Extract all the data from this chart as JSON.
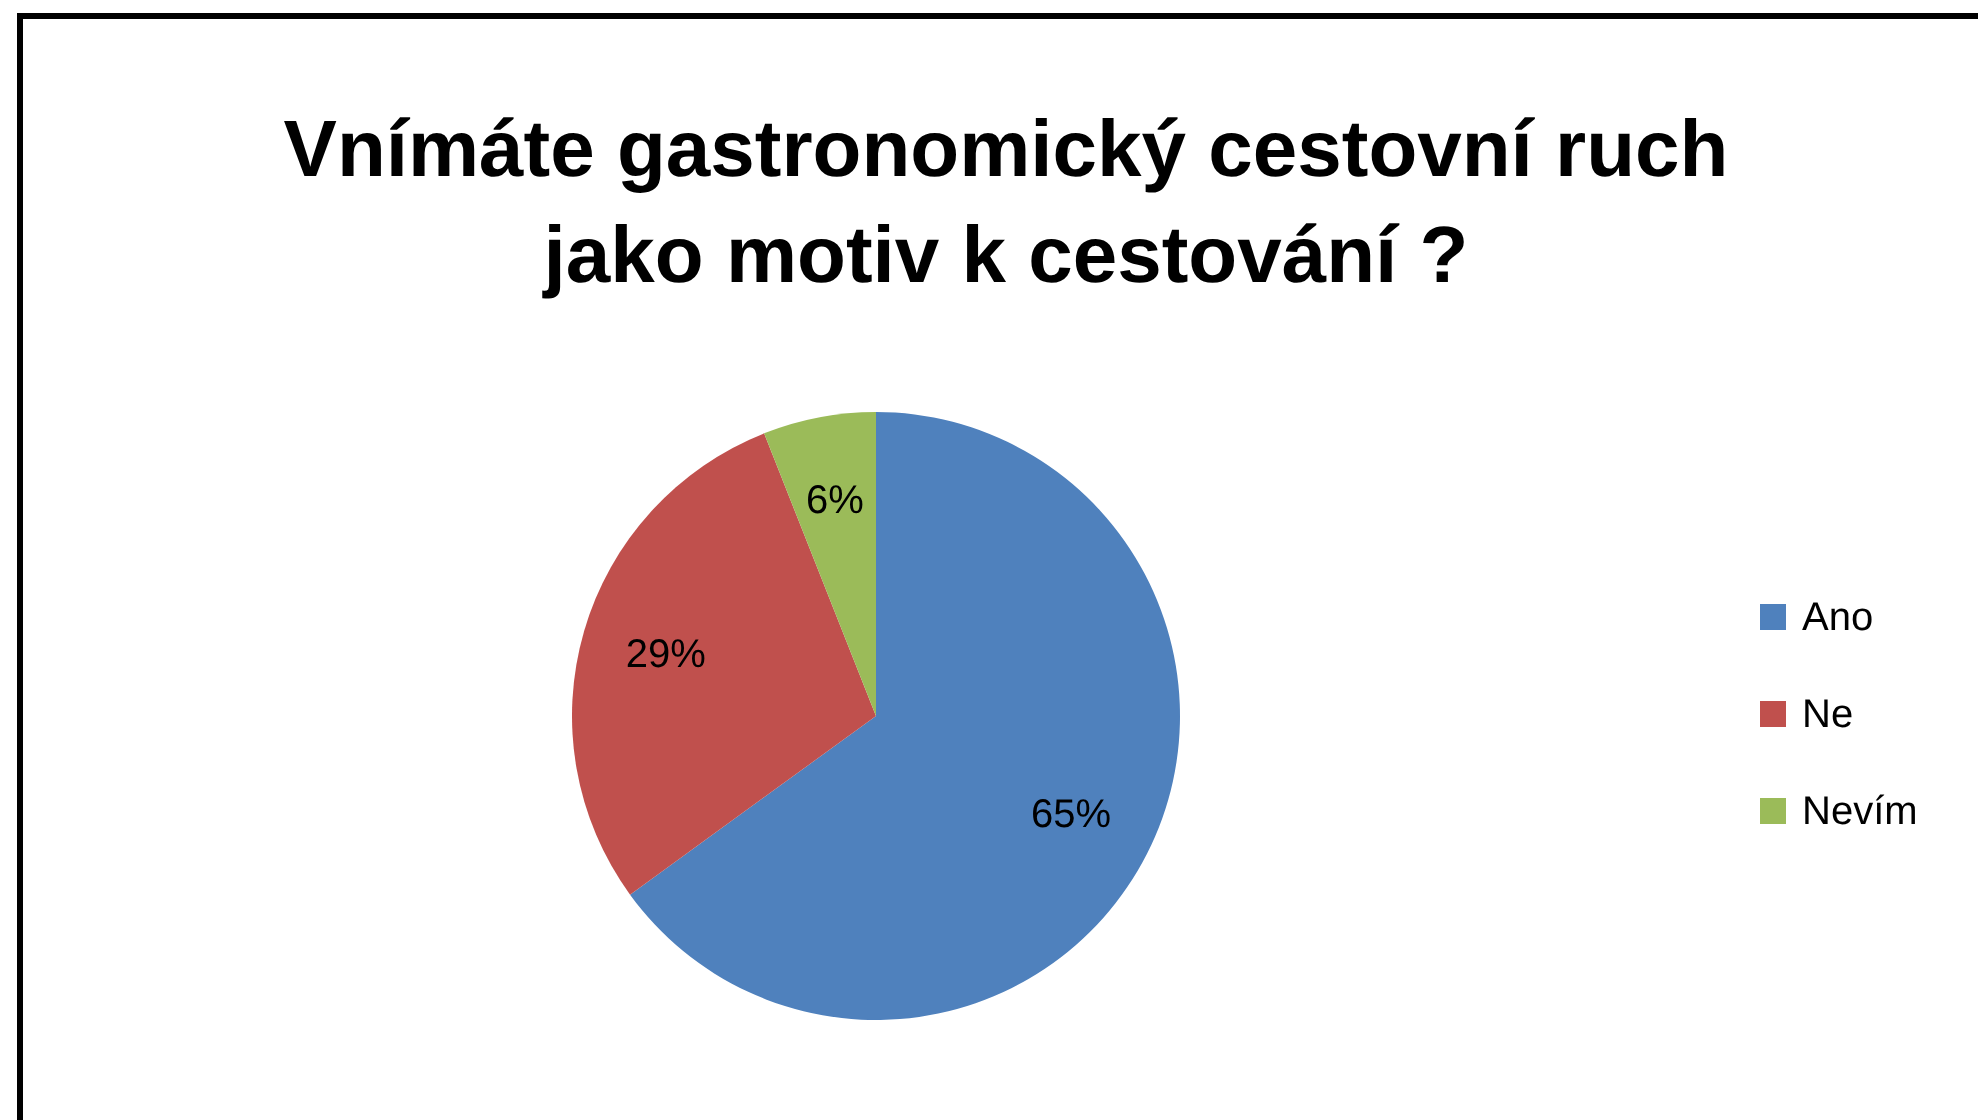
{
  "chart_data": {
    "type": "pie",
    "title": "Vnímáte gastronomický cestovní ruch\njako motiv k cestování ?",
    "categories": [
      "Ano",
      "Ne",
      "Nevím"
    ],
    "values": [
      65,
      29,
      6
    ],
    "colors": [
      "#4f81bd",
      "#c0504d",
      "#9bbb59"
    ],
    "value_labels": [
      "65%",
      "29%",
      "6%"
    ],
    "legend": "right"
  }
}
